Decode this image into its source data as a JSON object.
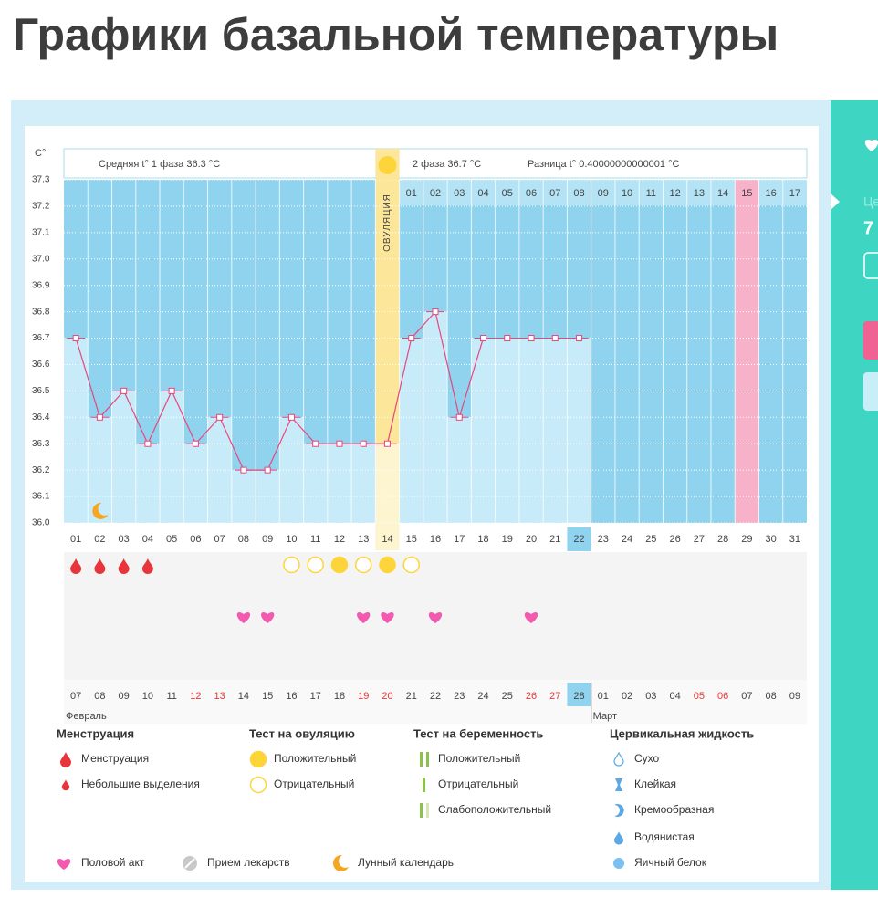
{
  "header": {
    "title": "Графики базальной температуры"
  },
  "chart_data": {
    "type": "line",
    "y_label": "C°",
    "phase1_text": "Средняя t° 1 фаза 36.3 °C",
    "phase2_text": "2 фаза 36.7 °C",
    "diff_text": "Разница t° 0.40000000000001 °C",
    "ovulation_label": "ОВУЛЯЦИЯ",
    "ovulation_day": "14",
    "highlight_day": "22",
    "marked_day": "29",
    "categories": [
      "01",
      "02",
      "03",
      "04",
      "05",
      "06",
      "07",
      "08",
      "09",
      "10",
      "11",
      "12",
      "13",
      "14",
      "15",
      "16",
      "17",
      "18",
      "19",
      "20",
      "21",
      "22",
      "23",
      "24",
      "25",
      "26",
      "27",
      "28",
      "29",
      "30",
      "31"
    ],
    "values": [
      36.7,
      36.4,
      36.5,
      36.3,
      36.5,
      36.3,
      36.4,
      36.2,
      36.2,
      36.4,
      36.3,
      36.3,
      36.3,
      36.3,
      36.7,
      36.8,
      36.4,
      36.7,
      36.7,
      36.7,
      36.7,
      36.7,
      null,
      null,
      null,
      null,
      null,
      null,
      null,
      null,
      null
    ],
    "color": "#e8467c",
    "ylim": [
      36.0,
      37.3
    ],
    "yticks": [
      {
        "value": 36.0,
        "label": "36.0"
      },
      36.1,
      36.2,
      36.3,
      {
        "value": 36.4,
        "label": "36.4"
      },
      36.5,
      36.6,
      36.7,
      36.8,
      {
        "value": 36.9,
        "label": "36.9"
      },
      {
        "value": 37.0,
        "label": "37.0"
      },
      37.1,
      37.2,
      37.3
    ],
    "grid": true,
    "phase2_days": [
      "01",
      "02",
      "03",
      "04",
      "05",
      "06",
      "07",
      "08",
      "09",
      "10",
      "11",
      "12",
      "13",
      "14",
      "15",
      "16",
      "17"
    ],
    "dates": [
      {
        "label": "07"
      },
      {
        "label": "08"
      },
      {
        "label": "09"
      },
      {
        "label": "10"
      },
      {
        "label": "11"
      },
      {
        "label": "12",
        "holiday": true
      },
      {
        "label": "13",
        "holiday": true
      },
      {
        "label": "14"
      },
      {
        "label": "15"
      },
      {
        "label": "16"
      },
      {
        "label": "17"
      },
      {
        "label": "18"
      },
      {
        "label": "19",
        "holiday": true
      },
      {
        "label": "20",
        "holiday": true
      },
      {
        "label": "21"
      },
      {
        "label": "22"
      },
      {
        "label": "23"
      },
      {
        "label": "24"
      },
      {
        "label": "25"
      },
      {
        "label": "26",
        "holiday": true
      },
      {
        "label": "27",
        "holiday": true
      },
      {
        "label": "28"
      },
      {
        "label": "01"
      },
      {
        "label": "02"
      },
      {
        "label": "03"
      },
      {
        "label": "04"
      },
      {
        "label": "05",
        "holiday": true
      },
      {
        "label": "06",
        "holiday": true
      },
      {
        "label": "07"
      },
      {
        "label": "08"
      },
      {
        "label": "09"
      }
    ],
    "months": [
      {
        "label": "Февраль",
        "from": "01"
      },
      {
        "label": "Март",
        "from": "23"
      }
    ],
    "events": {
      "menstruation": [
        "01",
        "02",
        "03",
        "04"
      ],
      "moon": [
        "02"
      ],
      "ovulation_positive": [
        "12",
        "14"
      ],
      "ovulation_negative": [
        "10",
        "11",
        "13",
        "15"
      ],
      "sex": [
        "08",
        "09",
        "13",
        "14",
        "16",
        "20"
      ]
    }
  },
  "legend": {
    "groups": [
      {
        "title": "Менструация",
        "items": [
          "Менструация",
          "Небольшие выделения"
        ]
      },
      {
        "title": "Тест на овуляцию",
        "items": [
          "Положительный",
          "Отрицательный"
        ]
      },
      {
        "title": "Тест на беременность",
        "items": [
          "Положительный",
          "Отрицательный",
          "Слабоположительный"
        ]
      },
      {
        "title": "Цервикальная жидкость",
        "items": [
          "Сухо",
          "Клейкая",
          "Кремообразная",
          "Водянистая",
          "Яичный белок"
        ]
      }
    ],
    "other": [
      "Половой акт",
      "Прием лекарств",
      "Лунный календарь"
    ]
  },
  "side_panel": [
    "Це",
    "7"
  ]
}
